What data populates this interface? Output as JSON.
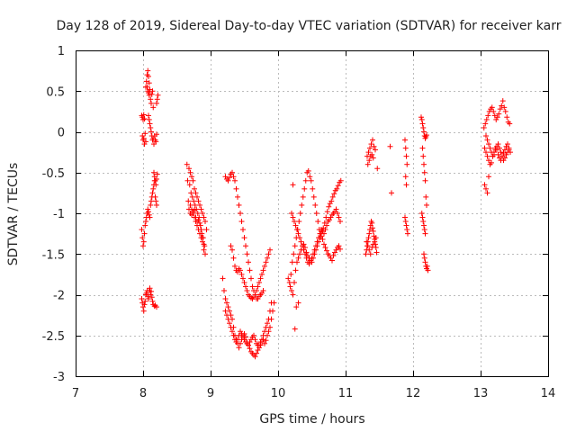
{
  "chart_data": {
    "type": "scatter",
    "title": "Day 128 of 2019, Sidereal Day-to-day VTEC variation (SDTVAR) for receiver karr",
    "xlabel": "GPS time / hours",
    "ylabel": "SDTVAR / TECUs",
    "xlim": [
      7,
      14
    ],
    "ylim": [
      -3,
      1
    ],
    "xticks": [
      7,
      8,
      9,
      10,
      11,
      12,
      13,
      14
    ],
    "yticks": [
      -3,
      -2.5,
      -2,
      -1.5,
      -1,
      -0.5,
      0,
      0.5,
      1
    ],
    "xtick_labels": [
      "7",
      "8",
      "9",
      "10",
      "11",
      "12",
      "13",
      "14"
    ],
    "ytick_labels": [
      "-3",
      "-2.5",
      "-2",
      "-1.5",
      "-1",
      "-0.5",
      "0",
      "0.5",
      "1"
    ],
    "grid": true,
    "marker": "+",
    "color": "#ff0000",
    "series": [
      {
        "x": [
          7.98,
          7.99,
          8.0,
          8.01,
          8.02,
          8.03,
          7.99,
          8.0,
          8.01,
          8.02,
          8.03,
          8.04,
          7.98,
          7.99,
          8.0,
          8.01,
          8.02,
          8.04,
          8.05,
          8.06,
          8.07,
          8.08,
          8.09,
          8.06,
          8.07,
          8.08,
          8.09,
          8.1,
          8.11,
          8.12,
          8.13,
          8.14,
          8.15,
          8.08,
          8.09,
          8.1,
          8.11,
          8.12,
          8.13,
          8.14,
          8.15,
          8.16,
          8.17,
          8.18,
          8.19,
          8.2,
          8.04,
          8.05,
          8.06,
          8.07,
          8.08,
          8.09,
          8.1,
          8.11,
          8.12,
          8.13,
          8.14,
          8.15,
          8.16,
          8.17,
          7.98,
          7.99,
          8.0,
          8.01,
          8.02,
          8.03,
          8.04,
          8.05,
          8.06,
          8.07,
          8.08,
          8.09,
          8.1,
          8.11,
          8.12,
          8.13,
          8.14,
          8.15,
          8.17,
          8.18,
          8.2,
          8.16,
          8.17,
          8.18,
          8.19,
          8.2,
          8.21,
          8.2,
          8.21,
          8.22,
          8.18,
          8.19,
          8.2
        ],
        "y": [
          -1.2,
          -1.3,
          -1.4,
          -1.35,
          -1.25,
          -1.15,
          -0.05,
          -0.1,
          -0.08,
          -0.15,
          -0.02,
          -0.12,
          0.2,
          0.18,
          0.15,
          0.21,
          0.16,
          0.55,
          0.62,
          0.7,
          0.75,
          0.68,
          0.6,
          0.55,
          0.5,
          0.48,
          0.45,
          0.52,
          0.4,
          0.35,
          0.46,
          0.5,
          0.3,
          0.2,
          0.15,
          0.1,
          0.05,
          0.0,
          -0.05,
          -0.1,
          -0.08,
          -0.15,
          -0.05,
          -0.1,
          -0.12,
          -0.03,
          -1.1,
          -1.05,
          -1.0,
          -0.95,
          -0.98,
          -1.02,
          -1.05,
          -0.9,
          -0.85,
          -0.8,
          -0.75,
          -0.7,
          -0.65,
          -0.6,
          -2.05,
          -2.1,
          -2.15,
          -2.2,
          -2.12,
          -2.08,
          -2.0,
          -1.98,
          -1.95,
          -2.02,
          -2.05,
          -1.95,
          -1.92,
          -2.0,
          -1.96,
          -2.03,
          -2.08,
          -2.12,
          -2.14,
          -2.13,
          -2.15,
          -0.5,
          -0.55,
          -0.6,
          -0.65,
          -0.58,
          -0.52,
          0.35,
          0.4,
          0.45,
          -0.8,
          -0.85,
          -0.9
        ]
      },
      {
        "x": [
          8.65,
          8.68,
          8.7,
          8.72,
          8.74,
          8.76,
          8.78,
          8.8,
          8.82,
          8.84,
          8.86,
          8.88,
          8.9,
          8.92,
          8.94,
          8.66,
          8.69,
          8.71,
          8.73,
          8.75,
          8.77,
          8.79,
          8.81,
          8.83,
          8.85,
          8.87,
          8.89,
          8.91,
          8.67,
          8.7,
          8.72,
          8.74,
          8.76,
          8.78,
          8.8,
          8.82,
          8.84,
          8.86,
          8.88,
          8.9,
          8.68,
          8.7,
          8.72,
          8.74,
          8.76,
          8.78,
          8.8,
          8.82,
          8.84,
          8.86,
          8.88,
          8.9,
          8.92
        ],
        "y": [
          -0.4,
          -0.45,
          -0.5,
          -0.55,
          -0.6,
          -0.7,
          -0.75,
          -0.8,
          -0.85,
          -0.9,
          -0.95,
          -1.0,
          -1.05,
          -1.1,
          -1.2,
          -0.6,
          -0.65,
          -0.75,
          -0.8,
          -0.85,
          -0.9,
          -0.95,
          -1.0,
          -1.05,
          -1.15,
          -1.25,
          -1.3,
          -1.4,
          -0.85,
          -0.9,
          -0.95,
          -1.0,
          -1.05,
          -1.1,
          -1.15,
          -1.2,
          -1.25,
          -1.3,
          -1.35,
          -1.45,
          -0.95,
          -1.0,
          -1.02,
          -0.98,
          -0.96,
          -1.05,
          -1.1,
          -1.08,
          -1.12,
          -1.2,
          -1.3,
          -1.38,
          -1.5
        ]
      },
      {
        "x": [
          9.18,
          9.2,
          9.22,
          9.24,
          9.26,
          9.28,
          9.3,
          9.32,
          9.34,
          9.36,
          9.38,
          9.4,
          9.42,
          9.44,
          9.46,
          9.48,
          9.5,
          9.52,
          9.54,
          9.56,
          9.58,
          9.6,
          9.62,
          9.64,
          9.66,
          9.68,
          9.7,
          9.72,
          9.74,
          9.76,
          9.78,
          9.8,
          9.82,
          9.84,
          9.86,
          9.88,
          9.9,
          9.22,
          9.24,
          9.26,
          9.28,
          9.3,
          9.32,
          9.34,
          9.36,
          9.38,
          9.4,
          9.42,
          9.44,
          9.46,
          9.48,
          9.5,
          9.52,
          9.54,
          9.56,
          9.58,
          9.6,
          9.62,
          9.64,
          9.66,
          9.68,
          9.7,
          9.72,
          9.74,
          9.76,
          9.78,
          9.8,
          9.82,
          9.84,
          9.86,
          9.88,
          9.9,
          9.92,
          9.94
        ],
        "y": [
          -1.8,
          -1.95,
          -2.05,
          -2.1,
          -2.15,
          -2.2,
          -2.25,
          -2.3,
          -2.4,
          -2.5,
          -2.55,
          -2.6,
          -2.65,
          -2.6,
          -2.55,
          -2.5,
          -2.48,
          -2.52,
          -2.58,
          -2.62,
          -2.66,
          -2.7,
          -2.72,
          -2.74,
          -2.76,
          -2.72,
          -2.68,
          -2.62,
          -2.58,
          -2.55,
          -2.5,
          -2.45,
          -2.4,
          -2.35,
          -2.3,
          -2.2,
          -2.1,
          -2.2,
          -2.25,
          -2.3,
          -2.35,
          -2.4,
          -2.45,
          -2.5,
          -2.55,
          -2.58,
          -2.55,
          -2.5,
          -2.45,
          -2.48,
          -2.52,
          -2.55,
          -2.58,
          -2.6,
          -2.62,
          -2.58,
          -2.55,
          -2.52,
          -2.5,
          -2.55,
          -2.6,
          -2.62,
          -2.65,
          -2.62,
          -2.58,
          -2.55,
          -2.6,
          -2.56,
          -2.5,
          -2.45,
          -2.4,
          -2.3,
          -2.2,
          -2.1
        ]
      },
      {
        "x": [
          9.22,
          9.24,
          9.26,
          9.28,
          9.3,
          9.32,
          9.34,
          9.36,
          9.38,
          9.4,
          9.42,
          9.44,
          9.46,
          9.48,
          9.5,
          9.52,
          9.54,
          9.56,
          9.58,
          9.6,
          9.62,
          9.64,
          9.66,
          9.68,
          9.7,
          9.72,
          9.74,
          9.76,
          9.78,
          9.3,
          9.32,
          9.34,
          9.36,
          9.38,
          9.4,
          9.42,
          9.44,
          9.46,
          9.48,
          9.5,
          9.52,
          9.54,
          9.56,
          9.58,
          9.6,
          9.62,
          9.64,
          9.66,
          9.68,
          9.7,
          9.72,
          9.74,
          9.76,
          9.78,
          9.8,
          9.82,
          9.84,
          9.86,
          9.88
        ],
        "y": [
          -0.55,
          -0.58,
          -0.6,
          -0.56,
          -0.52,
          -0.5,
          -0.55,
          -0.6,
          -0.7,
          -0.8,
          -0.9,
          -1.0,
          -1.1,
          -1.2,
          -1.3,
          -1.4,
          -1.5,
          -1.6,
          -1.7,
          -1.8,
          -1.9,
          -1.95,
          -2.0,
          -2.05,
          -2.05,
          -2.02,
          -2.0,
          -1.98,
          -1.95,
          -1.4,
          -1.45,
          -1.55,
          -1.65,
          -1.7,
          -1.72,
          -1.68,
          -1.7,
          -1.75,
          -1.8,
          -1.85,
          -1.9,
          -1.95,
          -2.0,
          -2.02,
          -2.04,
          -2.05,
          -2.03,
          -2.0,
          -1.95,
          -1.9,
          -1.85,
          -1.8,
          -1.75,
          -1.7,
          -1.65,
          -1.6,
          -1.55,
          -1.5,
          -1.45
        ]
      },
      {
        "x": [
          10.15,
          10.17,
          10.19,
          10.21,
          10.23,
          10.25,
          10.27,
          10.29,
          10.31,
          10.33,
          10.35,
          10.37,
          10.39,
          10.41,
          10.43,
          10.45,
          10.47,
          10.49,
          10.51,
          10.53,
          10.55,
          10.57,
          10.59,
          10.61,
          10.63,
          10.65,
          10.67,
          10.69,
          10.71,
          10.73,
          10.75,
          10.77,
          10.79,
          10.81,
          10.83,
          10.85,
          10.87,
          10.89,
          10.91,
          10.93,
          10.18,
          10.2,
          10.22,
          10.24,
          10.26,
          10.28,
          10.3,
          10.32,
          10.34,
          10.36,
          10.38,
          10.4,
          10.42,
          10.44,
          10.46,
          10.48,
          10.5,
          10.52,
          10.54,
          10.56,
          10.58,
          10.6,
          10.62,
          10.64,
          10.66,
          10.68,
          10.7,
          10.72,
          10.74,
          10.76,
          10.78,
          10.8,
          10.82,
          10.84,
          10.86,
          10.88,
          10.9,
          10.92
        ],
        "y": [
          -1.8,
          -1.85,
          -1.75,
          -1.6,
          -1.5,
          -1.4,
          -1.3,
          -1.2,
          -1.1,
          -1.0,
          -0.9,
          -0.8,
          -0.7,
          -0.6,
          -0.5,
          -0.48,
          -0.55,
          -0.6,
          -0.7,
          -0.8,
          -0.9,
          -1.0,
          -1.1,
          -1.2,
          -1.25,
          -1.22,
          -1.18,
          -1.12,
          -1.05,
          -0.98,
          -0.92,
          -0.88,
          -0.85,
          -0.8,
          -0.76,
          -0.72,
          -0.7,
          -0.66,
          -0.62,
          -0.6,
          -1.9,
          -1.95,
          -2.0,
          -1.85,
          -1.7,
          -1.6,
          -1.55,
          -1.5,
          -1.45,
          -1.4,
          -1.38,
          -1.42,
          -1.48,
          -1.52,
          -1.55,
          -1.58,
          -1.6,
          -1.55,
          -1.5,
          -1.45,
          -1.4,
          -1.35,
          -1.3,
          -1.28,
          -1.32,
          -1.38,
          -1.42,
          -1.46,
          -1.5,
          -1.52,
          -1.55,
          -1.58,
          -1.52,
          -1.48,
          -1.45,
          -1.42,
          -1.4,
          -1.44
        ]
      },
      {
        "x": [
          10.2,
          10.22,
          10.24,
          10.26,
          10.28,
          10.3,
          10.32,
          10.34,
          10.36,
          10.38,
          10.4,
          10.42,
          10.44,
          10.46,
          10.48,
          10.5,
          10.52,
          10.54,
          10.56,
          10.58,
          10.6,
          10.62,
          10.64,
          10.66,
          10.68,
          10.7,
          10.72,
          10.74,
          10.76,
          10.78,
          10.8,
          10.82,
          10.84,
          10.86,
          10.88,
          10.9,
          10.92,
          10.25,
          10.27,
          10.3,
          10.22
        ],
        "y": [
          -1.0,
          -1.05,
          -1.1,
          -1.15,
          -1.2,
          -1.25,
          -1.3,
          -1.35,
          -1.4,
          -1.45,
          -1.5,
          -1.55,
          -1.6,
          -1.62,
          -1.58,
          -1.55,
          -1.5,
          -1.45,
          -1.4,
          -1.35,
          -1.3,
          -1.25,
          -1.2,
          -1.22,
          -1.25,
          -1.2,
          -1.15,
          -1.1,
          -1.08,
          -1.05,
          -1.02,
          -1.0,
          -0.98,
          -0.95,
          -1.0,
          -1.05,
          -1.1,
          -2.42,
          -2.15,
          -2.1,
          -0.65
        ]
      },
      {
        "x": [
          11.3,
          11.31,
          11.32,
          11.33,
          11.34,
          11.35,
          11.36,
          11.37,
          11.38,
          11.39,
          11.4,
          11.41,
          11.42,
          11.43,
          11.44,
          11.45,
          11.46,
          11.32,
          11.34,
          11.36,
          11.38,
          11.4,
          11.42,
          11.44,
          11.33,
          11.35,
          11.37,
          11.39,
          11.41,
          11.31,
          11.33,
          11.35,
          11.37,
          11.39,
          11.41,
          11.43,
          11.45,
          11.47,
          11.66,
          11.68
        ],
        "y": [
          -1.5,
          -1.45,
          -1.4,
          -1.35,
          -1.3,
          -1.25,
          -1.2,
          -1.15,
          -1.1,
          -1.12,
          -1.18,
          -1.22,
          -1.28,
          -1.32,
          -1.38,
          -1.42,
          -1.48,
          -0.3,
          -0.25,
          -0.2,
          -0.15,
          -0.1,
          -0.18,
          -0.22,
          -0.4,
          -0.35,
          -0.3,
          -0.28,
          -0.32,
          -1.35,
          -1.4,
          -1.45,
          -1.5,
          -1.42,
          -1.38,
          -1.35,
          -1.3,
          -0.45,
          -0.18,
          -0.75
        ]
      },
      {
        "x": [
          11.88,
          11.89,
          11.9,
          11.91,
          11.92,
          11.88,
          11.89,
          11.9,
          11.91,
          11.89,
          11.9,
          12.12,
          12.13,
          12.14,
          12.15,
          12.16,
          12.17,
          12.18,
          12.19,
          12.2,
          12.14,
          12.15,
          12.16,
          12.17,
          12.18,
          12.13,
          12.14,
          12.15,
          12.16,
          12.17,
          12.18,
          12.19,
          12.2,
          12.16,
          12.17,
          12.18,
          12.19,
          12.2,
          12.21,
          12.22
        ],
        "y": [
          -1.05,
          -1.1,
          -1.15,
          -1.2,
          -1.25,
          -0.1,
          -0.2,
          -0.3,
          -0.4,
          -0.55,
          -0.65,
          0.18,
          0.15,
          0.1,
          0.05,
          0.0,
          -0.05,
          -0.08,
          -0.06,
          -0.04,
          -0.2,
          -0.3,
          -0.4,
          -0.5,
          -0.6,
          -1.0,
          -1.05,
          -1.1,
          -1.15,
          -1.2,
          -1.25,
          -0.8,
          -0.9,
          -1.5,
          -1.55,
          -1.6,
          -1.65,
          -1.68,
          -1.65,
          -1.7
        ]
      },
      {
        "x": [
          13.05,
          13.07,
          13.09,
          13.11,
          13.13,
          13.15,
          13.17,
          13.19,
          13.21,
          13.23,
          13.25,
          13.27,
          13.29,
          13.31,
          13.33,
          13.35,
          13.37,
          13.39,
          13.41,
          13.43,
          13.08,
          13.1,
          13.12,
          13.14,
          13.16,
          13.18,
          13.2,
          13.22,
          13.24,
          13.26,
          13.28,
          13.3,
          13.32,
          13.34,
          13.36,
          13.38,
          13.4,
          13.42,
          13.06,
          13.08,
          13.1,
          13.12,
          13.14,
          13.16,
          13.18,
          13.2,
          13.22,
          13.24,
          13.26,
          13.28,
          13.3,
          13.32,
          13.34,
          13.36,
          13.38,
          13.4,
          13.42,
          13.44,
          13.06,
          13.08,
          13.1,
          13.12
        ],
        "y": [
          0.05,
          0.1,
          0.15,
          0.2,
          0.25,
          0.28,
          0.3,
          0.25,
          0.2,
          0.15,
          0.18,
          0.22,
          0.28,
          0.32,
          0.38,
          0.3,
          0.25,
          0.18,
          0.12,
          0.1,
          -0.05,
          -0.1,
          -0.15,
          -0.2,
          -0.25,
          -0.3,
          -0.28,
          -0.22,
          -0.18,
          -0.15,
          -0.2,
          -0.25,
          -0.3,
          -0.35,
          -0.32,
          -0.28,
          -0.25,
          -0.22,
          -0.2,
          -0.25,
          -0.3,
          -0.35,
          -0.4,
          -0.38,
          -0.3,
          -0.25,
          -0.2,
          -0.22,
          -0.28,
          -0.32,
          -0.35,
          -0.3,
          -0.26,
          -0.22,
          -0.18,
          -0.15,
          -0.2,
          -0.25,
          -0.65,
          -0.7,
          -0.75,
          -0.55
        ]
      }
    ]
  }
}
